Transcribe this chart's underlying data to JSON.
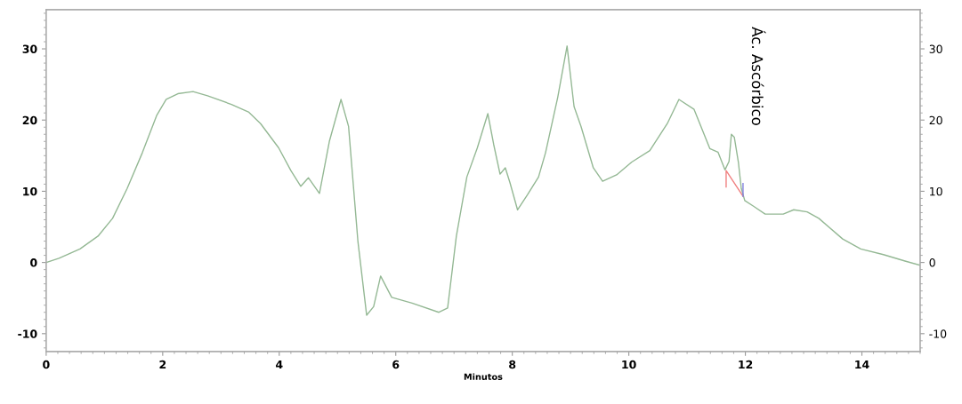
{
  "chart_data": {
    "type": "line",
    "xlabel": "Minutos",
    "xlim": [
      0,
      15
    ],
    "xticks": [
      0,
      2,
      4,
      6,
      8,
      10,
      12,
      14
    ],
    "ylim": [
      -12.5,
      35.5
    ],
    "yticks": [
      -10,
      0,
      10,
      20,
      30
    ],
    "y2lim": [
      -12.5,
      35.5
    ],
    "y2ticks": [
      -10,
      0,
      10,
      20,
      30
    ],
    "grid": false,
    "legend": false,
    "marker": "none",
    "line_style": "solid",
    "annotations": [
      {
        "text": "Ác. Ascórbico",
        "x": 11.76,
        "y": 18
      }
    ],
    "series": [
      {
        "color": "#94b894",
        "x": [
          0,
          0.22,
          0.58,
          0.89,
          1.14,
          1.39,
          1.65,
          1.9,
          2.06,
          2.26,
          2.52,
          2.77,
          3.18,
          3.48,
          3.68,
          3.99,
          4.2,
          4.37,
          4.5,
          4.69,
          4.86,
          5.06,
          5.19,
          5.35,
          5.5,
          5.62,
          5.74,
          5.93,
          6.28,
          6.74,
          6.89,
          7.04,
          7.22,
          7.4,
          7.58,
          7.68,
          7.79,
          7.88,
          7.96,
          8.09,
          8.26,
          8.45,
          8.57,
          8.78,
          8.94,
          9.06,
          9.18,
          9.39,
          9.55,
          9.79,
          10.05,
          10.36,
          10.66,
          10.86,
          11.12,
          11.39,
          11.53,
          11.65,
          11.72,
          11.76,
          11.81,
          11.88,
          11.93,
          11.99,
          12.14,
          12.34,
          12.65,
          12.83,
          13.06,
          13.26,
          13.67,
          13.98,
          14.37,
          14.74,
          15
        ],
        "values": [
          0,
          0.6,
          1.9,
          3.7,
          6.2,
          10.4,
          15.4,
          20.7,
          22.9,
          23.7,
          24.0,
          23.4,
          22.2,
          21.1,
          19.5,
          16.1,
          12.9,
          10.7,
          11.9,
          9.7,
          17.0,
          22.9,
          19.1,
          3.0,
          -7.4,
          -6.2,
          -1.9,
          -4.9,
          -5.7,
          -7.0,
          -6.4,
          3.7,
          12.0,
          16.1,
          20.9,
          16.6,
          12.4,
          13.3,
          11.2,
          7.4,
          9.5,
          12.0,
          15.4,
          23.2,
          30.4,
          21.9,
          19.1,
          13.3,
          11.4,
          12.3,
          14.1,
          15.7,
          19.5,
          22.9,
          21.5,
          16.0,
          15.5,
          13.0,
          14.2,
          18.0,
          17.6,
          14.1,
          10.4,
          8.7,
          7.9,
          6.8,
          6.8,
          7.4,
          7.1,
          6.2,
          3.3,
          1.9,
          1.1,
          0.2,
          -0.4
        ]
      },
      {
        "color": "#f08080",
        "x": [
          11.67,
          11.67,
          11.96
        ],
        "values": [
          10.6,
          12.9,
          9.3
        ]
      },
      {
        "color": "#8080e0",
        "x": [
          11.96,
          11.96
        ],
        "values": [
          9.3,
          11.1
        ]
      }
    ]
  }
}
